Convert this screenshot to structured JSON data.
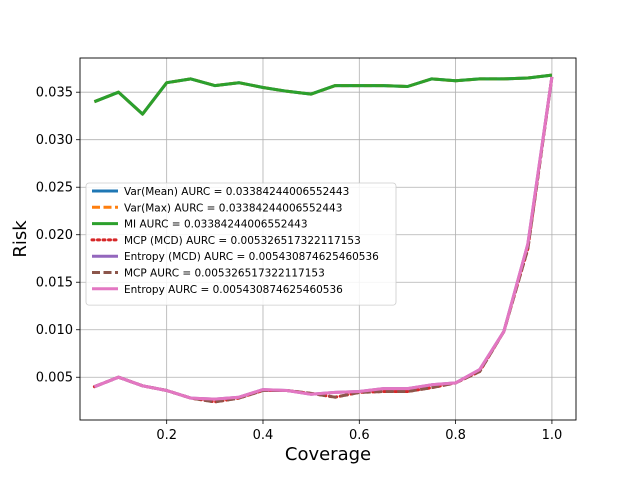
{
  "chart_data": {
    "type": "line",
    "xlabel": "Coverage",
    "ylabel": "Risk",
    "xlim": [
      0.02,
      1.05
    ],
    "ylim": [
      0.0005,
      0.0386
    ],
    "grid": true,
    "legend_position": "center-left",
    "x_ticks": [
      0.2,
      0.4,
      0.6,
      0.8,
      1.0
    ],
    "x_tick_labels": [
      "0.2",
      "0.4",
      "0.6",
      "0.8",
      "1.0"
    ],
    "y_ticks": [
      0.005,
      0.01,
      0.015,
      0.02,
      0.025,
      0.03,
      0.035
    ],
    "y_tick_labels": [
      "0.005",
      "0.010",
      "0.015",
      "0.020",
      "0.025",
      "0.030",
      "0.035"
    ],
    "x": [
      0.05,
      0.1,
      0.15,
      0.2,
      0.25,
      0.3,
      0.35,
      0.4,
      0.45,
      0.5,
      0.55,
      0.6,
      0.65,
      0.7,
      0.75,
      0.8,
      0.85,
      0.9,
      0.95,
      1.0
    ],
    "series": [
      {
        "name": "Var(Mean) AURC = 0.03384244006552443",
        "color": "#1f77b4",
        "dash": "solid",
        "values": [
          0.034,
          0.035,
          0.0327,
          0.036,
          0.0364,
          0.0357,
          0.036,
          0.0355,
          0.0351,
          0.0348,
          0.0357,
          0.0357,
          0.0357,
          0.0356,
          0.0364,
          0.0362,
          0.0364,
          0.0364,
          0.0365,
          0.0368
        ]
      },
      {
        "name": "Var(Max) AURC = 0.03384244006552443",
        "color": "#ff7f0e",
        "dash": "dashed",
        "values": [
          0.034,
          0.035,
          0.0327,
          0.036,
          0.0364,
          0.0357,
          0.036,
          0.0355,
          0.0351,
          0.0348,
          0.0357,
          0.0357,
          0.0357,
          0.0356,
          0.0364,
          0.0362,
          0.0364,
          0.0364,
          0.0365,
          0.0368
        ]
      },
      {
        "name": "MI AURC = 0.03384244006552443",
        "color": "#2ca02c",
        "dash": "solid",
        "values": [
          0.034,
          0.035,
          0.0327,
          0.036,
          0.0364,
          0.0357,
          0.036,
          0.0355,
          0.0351,
          0.0348,
          0.0357,
          0.0357,
          0.0357,
          0.0356,
          0.0364,
          0.0362,
          0.0364,
          0.0364,
          0.0365,
          0.0368
        ]
      },
      {
        "name": "MCP (MCD) AURC = 0.005326517322117153",
        "color": "#d62728",
        "dash": "dotted",
        "values": [
          0.004,
          0.005,
          0.0041,
          0.0036,
          0.0028,
          0.0024,
          0.0028,
          0.0036,
          0.0036,
          0.0033,
          0.0029,
          0.0034,
          0.0035,
          0.0035,
          0.0039,
          0.0044,
          0.0056,
          0.0098,
          0.0185,
          0.0366
        ]
      },
      {
        "name": "Entropy (MCD) AURC = 0.005430874625460536",
        "color": "#9467bd",
        "dash": "solid",
        "values": [
          0.004,
          0.005,
          0.0041,
          0.0036,
          0.0028,
          0.0027,
          0.0029,
          0.0037,
          0.0036,
          0.0032,
          0.0034,
          0.0035,
          0.0038,
          0.0038,
          0.0042,
          0.0044,
          0.0058,
          0.0098,
          0.019,
          0.0366
        ]
      },
      {
        "name": "MCP AURC = 0.005326517322117153",
        "color": "#8c564b",
        "dash": "dashed",
        "values": [
          0.004,
          0.005,
          0.0041,
          0.0036,
          0.0028,
          0.0024,
          0.0028,
          0.0036,
          0.0036,
          0.0033,
          0.0029,
          0.0034,
          0.0035,
          0.0035,
          0.0039,
          0.0044,
          0.0056,
          0.0098,
          0.0185,
          0.0366
        ]
      },
      {
        "name": "Entropy AURC = 0.005430874625460536",
        "color": "#e377c2",
        "dash": "solid",
        "values": [
          0.004,
          0.005,
          0.0041,
          0.0036,
          0.0028,
          0.0027,
          0.0029,
          0.0037,
          0.0036,
          0.0032,
          0.0034,
          0.0035,
          0.0038,
          0.0038,
          0.0042,
          0.0044,
          0.0058,
          0.0098,
          0.019,
          0.0366
        ]
      }
    ]
  }
}
